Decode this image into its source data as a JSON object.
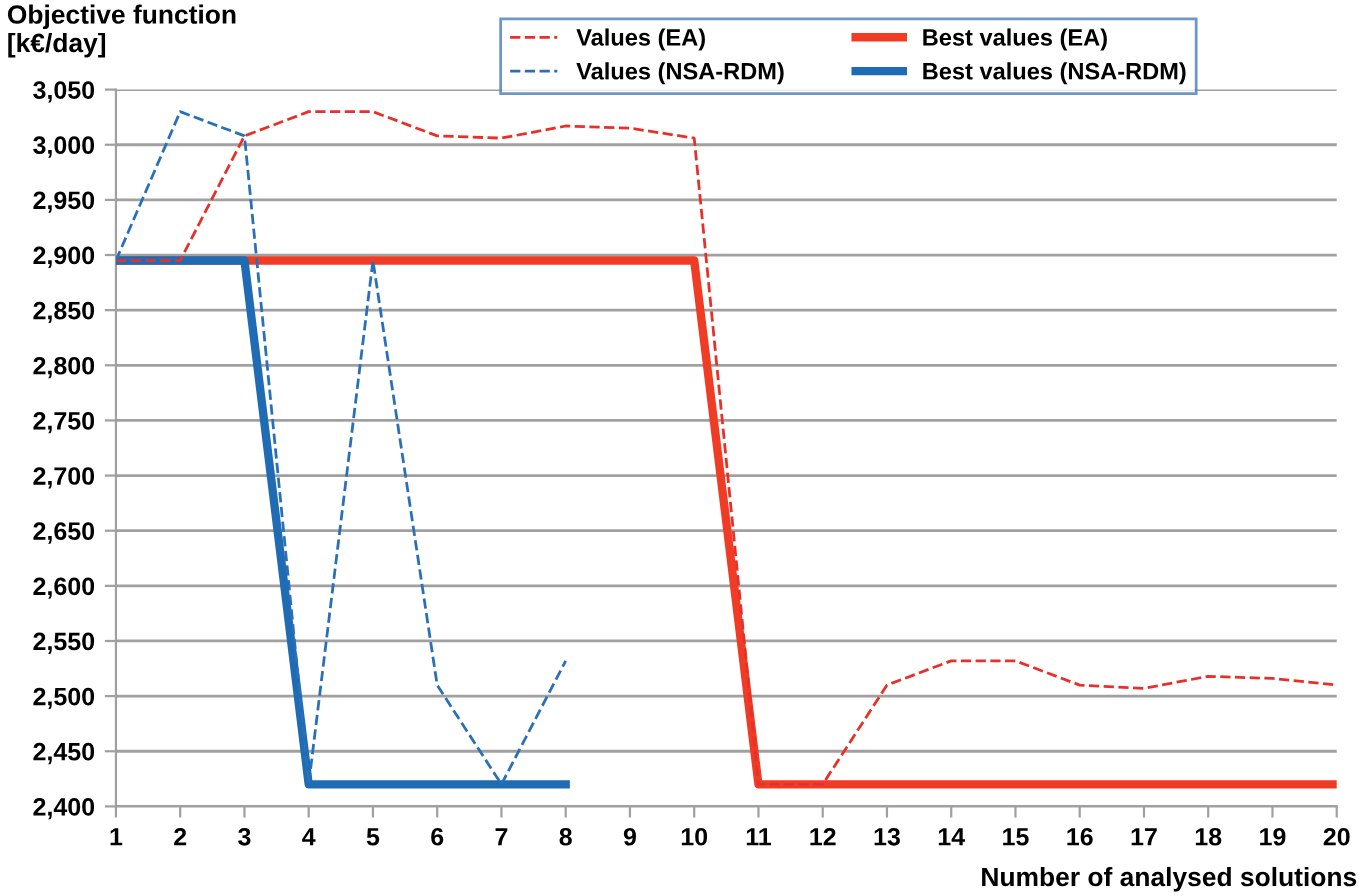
{
  "chart_data": {
    "type": "line",
    "ylabel": "Objective function\n[k€/day]",
    "xlabel": "Number of analysed solutions",
    "x": [
      1,
      2,
      3,
      4,
      5,
      6,
      7,
      8,
      9,
      10,
      11,
      12,
      13,
      14,
      15,
      16,
      17,
      18,
      19,
      20
    ],
    "xlim": [
      1,
      20
    ],
    "xticks": [
      1,
      2,
      3,
      4,
      5,
      6,
      7,
      8,
      9,
      10,
      11,
      12,
      13,
      14,
      15,
      16,
      17,
      18,
      19,
      20
    ],
    "ylim": [
      2400,
      3050
    ],
    "yticks": [
      {
        "value": 2400,
        "label": "2,400"
      },
      {
        "value": 2450,
        "label": "2,450"
      },
      {
        "value": 2500,
        "label": "2,500"
      },
      {
        "value": 2550,
        "label": "2,550"
      },
      {
        "value": 2600,
        "label": "2,600"
      },
      {
        "value": 2650,
        "label": "2,650"
      },
      {
        "value": 2700,
        "label": "2,700"
      },
      {
        "value": 2750,
        "label": "2,750"
      },
      {
        "value": 2800,
        "label": "2,800"
      },
      {
        "value": 2850,
        "label": "2,850"
      },
      {
        "value": 2900,
        "label": "2,900"
      },
      {
        "value": 2950,
        "label": "2,950"
      },
      {
        "value": 3000,
        "label": "3,000"
      },
      {
        "value": 3050,
        "label": "3,050"
      }
    ],
    "grid": "y",
    "legend": "top",
    "marker": "none",
    "series": [
      {
        "name": "Values (EA)",
        "color": "#e8302a",
        "line_style": "dashed",
        "values": [
          2895,
          2895,
          3008,
          3030,
          3030,
          3008,
          3006,
          3017,
          3015,
          3006,
          2420,
          2420,
          2510,
          2532,
          2532,
          2510,
          2507,
          2518,
          2516,
          2510
        ]
      },
      {
        "name": "Values (NSA-RDM)",
        "color": "#2a70b8",
        "line_style": "dashed",
        "values": [
          2895,
          3030,
          3008,
          2420,
          2895,
          2510,
          2420,
          2532,
          null,
          null,
          null,
          null,
          null,
          null,
          null,
          null,
          null,
          null,
          null,
          null
        ]
      },
      {
        "name": "Best values (EA)",
        "color": "#f03c24",
        "line_style": "solid",
        "values": [
          2895,
          2895,
          2895,
          2895,
          2895,
          2895,
          2895,
          2895,
          2895,
          2895,
          2420,
          2420,
          2420,
          2420,
          2420,
          2420,
          2420,
          2420,
          2420,
          2420
        ]
      },
      {
        "name": "Best values (NSA-RDM)",
        "color": "#1f6cb5",
        "line_style": "solid",
        "values": [
          2895,
          2895,
          2895,
          2420,
          2420,
          2420,
          2420,
          2420,
          null,
          null,
          null,
          null,
          null,
          null,
          null,
          null,
          null,
          null,
          null,
          null
        ]
      }
    ]
  }
}
